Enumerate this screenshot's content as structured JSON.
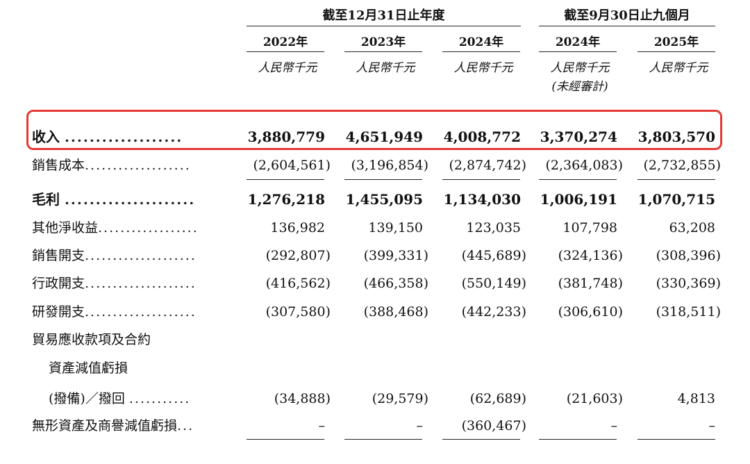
{
  "header": {
    "group_annual": "截至12月31日止年度",
    "group_nine_months": "截至9月30日止九個月",
    "columns": [
      {
        "year": "2022年",
        "unit": "人民幣千元",
        "note": ""
      },
      {
        "year": "2023年",
        "unit": "人民幣千元",
        "note": ""
      },
      {
        "year": "2024年",
        "unit": "人民幣千元",
        "note": ""
      },
      {
        "year": "2024年",
        "unit": "人民幣千元",
        "note": "(未經審計)"
      },
      {
        "year": "2025年",
        "unit": "人民幣千元",
        "note": ""
      }
    ]
  },
  "rows": [
    {
      "label": "收入",
      "dots": "...................",
      "values": [
        "3,880,779",
        "4,651,949",
        "4,008,772",
        "3,370,274",
        "3,803,570"
      ]
    },
    {
      "label": "銷售成本",
      "dots": "...................",
      "values": [
        "(2,604,561)",
        "(3,196,854)",
        "(2,874,742)",
        "(2,364,083)",
        "(2,732,855)"
      ]
    },
    {
      "label": "毛利",
      "dots": ".....................",
      "values": [
        "1,276,218",
        "1,455,095",
        "1,134,030",
        "1,006,191",
        "1,070,715"
      ]
    },
    {
      "label": "其他淨收益",
      "dots": "..................",
      "values": [
        "136,982",
        "139,150",
        "123,035",
        "107,798",
        "63,208"
      ]
    },
    {
      "label": "銷售開支",
      "dots": "....................",
      "values": [
        "(292,807)",
        "(399,331)",
        "(445,689)",
        "(324,136)",
        "(308,396)"
      ]
    },
    {
      "label": "行政開支",
      "dots": "....................",
      "values": [
        "(416,562)",
        "(466,358)",
        "(550,149)",
        "(381,748)",
        "(330,369)"
      ]
    },
    {
      "label": "研發開支",
      "dots": "....................",
      "values": [
        "(307,580)",
        "(388,468)",
        "(442,233)",
        "(306,610)",
        "(318,511)"
      ]
    },
    {
      "label": "貿易應收款項及合約",
      "dots": "",
      "values": [
        "",
        "",
        "",
        "",
        ""
      ]
    },
    {
      "label": "資產減值虧損",
      "dots": "",
      "values": [
        "",
        "",
        "",
        "",
        ""
      ]
    },
    {
      "label": "(撥備)／撥回",
      "dots": "...........",
      "values": [
        "(34,888)",
        "(29,579)",
        "(62,689)",
        "(21,603)",
        "4,813"
      ]
    },
    {
      "label": "無形資產及商譽減值虧損",
      "dots": "...",
      "values": [
        "–",
        "–",
        "(360,467)",
        "–",
        "–"
      ]
    }
  ]
}
